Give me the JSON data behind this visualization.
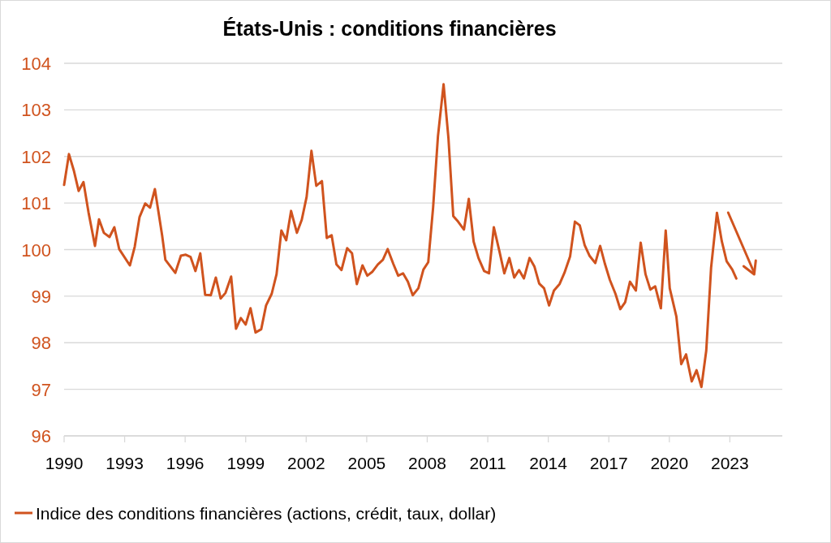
{
  "chart_data": {
    "type": "line",
    "title": "États-Unis : conditions financières",
    "xlim": [
      1990,
      2025.6
    ],
    "xticks": [
      1990,
      1993,
      1996,
      1999,
      2002,
      2005,
      2008,
      2011,
      2014,
      2017,
      2020,
      2023
    ],
    "ylim": [
      96,
      104
    ],
    "yticks": [
      96,
      97,
      98,
      99,
      100,
      101,
      102,
      103,
      104
    ],
    "grid": "y",
    "legend": "bottom",
    "series": [
      {
        "name": "Indice des conditions financières (actions, crédit, taux, dollar)",
        "color": "#d0531e",
        "x": [
          1990,
          1990.24,
          1990.48,
          1990.72,
          1990.96,
          1991.21,
          1991.53,
          1991.73,
          1991.97,
          1992.25,
          1992.49,
          1992.73,
          1993.26,
          1993.5,
          1993.74,
          1994.02,
          1994.26,
          1994.5,
          1994.86,
          1995.02,
          1995.51,
          1995.79,
          1996.03,
          1996.27,
          1996.51,
          1996.75,
          1996.99,
          1997.27,
          1997.52,
          1997.76,
          1998,
          1998.28,
          1998.52,
          1998.76,
          1999,
          1999.24,
          1999.49,
          1999.77,
          2000.01,
          2000.29,
          2000.53,
          2000.77,
          2001.01,
          2001.25,
          2001.54,
          2001.78,
          2002.02,
          2002.26,
          2002.5,
          2002.78,
          2003.02,
          2003.26,
          2003.5,
          2003.75,
          2004.03,
          2004.27,
          2004.51,
          2004.79,
          2005.03,
          2005.27,
          2005.55,
          2005.8,
          2006.04,
          2006.32,
          2006.56,
          2006.8,
          2007.04,
          2007.28,
          2007.56,
          2007.81,
          2008.05,
          2008.29,
          2008.53,
          2008.81,
          2009.05,
          2009.29,
          2009.53,
          2009.82,
          2010.06,
          2010.3,
          2010.54,
          2010.82,
          2011.06,
          2011.3,
          2011.58,
          2011.82,
          2012.07,
          2012.31,
          2012.55,
          2012.79,
          2013.07,
          2013.31,
          2013.55,
          2013.79,
          2014.04,
          2014.28,
          2014.56,
          2014.8,
          2015.08,
          2015.32,
          2015.56,
          2015.8,
          2016.04,
          2016.33,
          2016.57,
          2016.81,
          2017.05,
          2017.33,
          2017.57,
          2017.81,
          2018.05,
          2018.34,
          2018.58,
          2018.82,
          2019.06,
          2019.3,
          2019.58,
          2019.82,
          2020.02,
          2020.35,
          2020.59,
          2020.83,
          2021.11,
          2021.35,
          2021.59,
          2021.83,
          2022.07,
          2022.36,
          2022.6,
          2022.84,
          2023.12,
          2023.32
        ],
        "values": [
          101.39,
          102.05,
          101.7,
          101.26,
          101.45,
          100.8,
          100.08,
          100.65,
          100.36,
          100.27,
          100.48,
          100.01,
          99.66,
          100.06,
          100.7,
          100.99,
          100.9,
          101.3,
          100.3,
          99.78,
          99.5,
          99.87,
          99.89,
          99.84,
          99.54,
          99.92,
          99.03,
          99.02,
          99.4,
          98.95,
          99.07,
          99.42,
          98.3,
          98.53,
          98.39,
          98.74,
          98.22,
          98.29,
          98.8,
          99.05,
          99.47,
          100.41,
          100.2,
          100.83,
          100.36,
          100.64,
          101.13,
          102.12,
          101.37,
          101.47,
          100.25,
          100.31,
          99.68,
          99.56,
          100.03,
          99.92,
          99.26,
          99.66,
          99.44,
          99.52,
          99.68,
          99.78,
          100.01,
          99.69,
          99.44,
          99.49,
          99.31,
          99.02,
          99.17,
          99.57,
          99.73,
          100.9,
          102.43,
          103.55,
          102.4,
          100.72,
          100.6,
          100.43,
          101.09,
          100.17,
          99.82,
          99.54,
          99.49,
          100.48,
          99.96,
          99.49,
          99.82,
          99.4,
          99.56,
          99.38,
          99.82,
          99.64,
          99.27,
          99.17,
          98.8,
          99.12,
          99.26,
          99.5,
          99.85,
          100.6,
          100.52,
          100.1,
          99.87,
          99.71,
          100.08,
          99.69,
          99.35,
          99.05,
          98.72,
          98.87,
          99.31,
          99.12,
          100.15,
          99.47,
          99.14,
          99.21,
          98.74,
          100.41,
          99.17,
          98.56,
          97.54,
          97.75,
          97.17,
          97.41,
          97.05,
          97.83,
          99.61,
          100.79,
          100.18,
          99.75,
          99.57,
          99.38
        ]
      }
    ]
  }
}
